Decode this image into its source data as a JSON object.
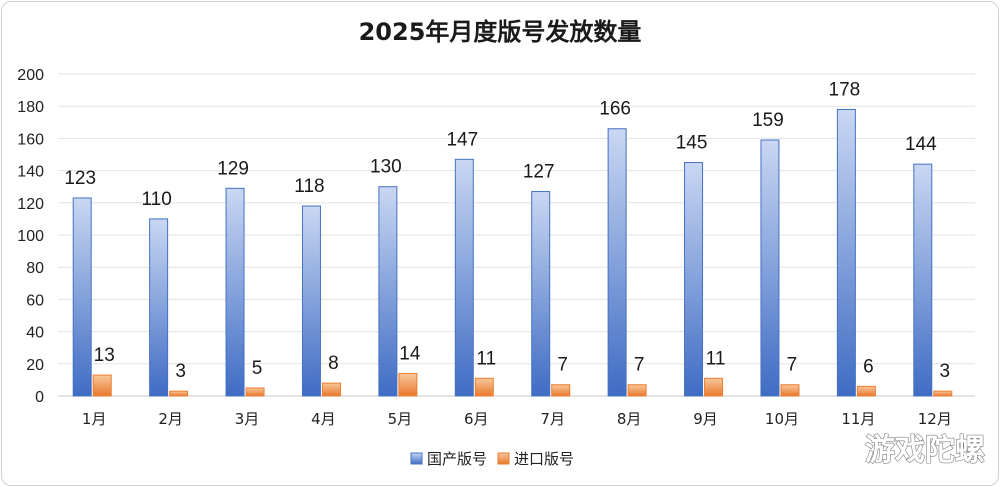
{
  "chart_data": {
    "type": "bar",
    "title": "2025年月度版号发放数量",
    "categories": [
      "1月",
      "2月",
      "3月",
      "4月",
      "5月",
      "6月",
      "7月",
      "8月",
      "9月",
      "10月",
      "11月",
      "12月"
    ],
    "series": [
      {
        "name": "国产版号",
        "values": [
          123,
          110,
          129,
          118,
          130,
          147,
          127,
          166,
          145,
          159,
          178,
          144
        ],
        "color": "#4472c4"
      },
      {
        "name": "进口版号",
        "values": [
          13,
          3,
          5,
          8,
          14,
          11,
          7,
          7,
          11,
          7,
          6,
          3
        ],
        "color": "#ed7d31"
      }
    ],
    "ylim": [
      0,
      200
    ],
    "yticks": [
      0,
      20,
      40,
      60,
      80,
      100,
      120,
      140,
      160,
      180,
      200
    ],
    "grid": true,
    "legend": "bottom-center",
    "data_labels": true
  },
  "watermark": "游戏陀螺"
}
